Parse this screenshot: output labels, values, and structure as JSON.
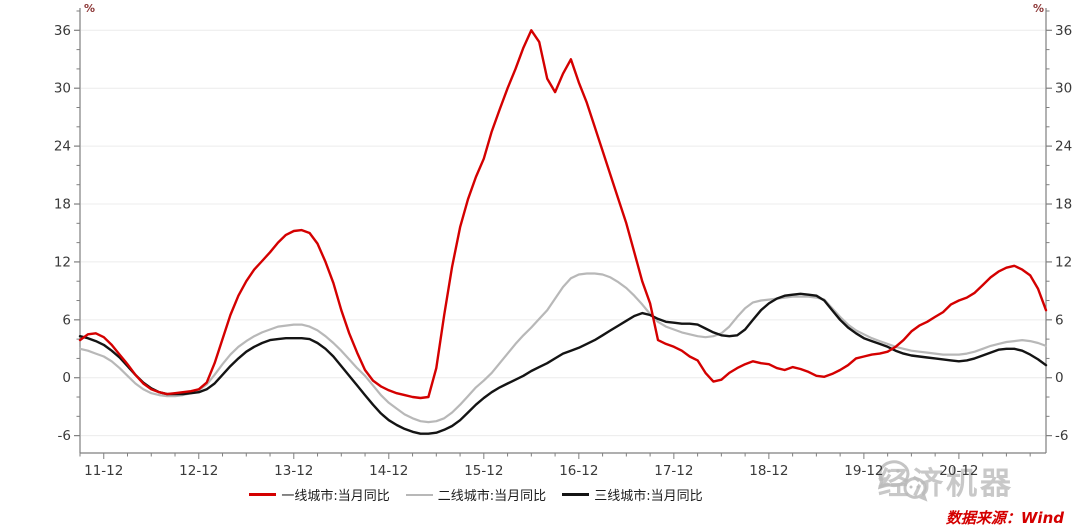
{
  "page": {
    "background": "#ffffff"
  },
  "watermark": {
    "text": "经济机器",
    "icon": "wechat-bubbles-icon",
    "color": "#c2c2c2"
  },
  "footer": {
    "source_text": "数据来源：Wind",
    "color": "#d40000"
  },
  "chart_data": {
    "type": "line",
    "title": "",
    "y_unit": "%",
    "ylim": [
      -7.8,
      38.0
    ],
    "y_ticks": [
      36,
      30,
      24,
      18,
      12,
      6,
      0,
      -6
    ],
    "y_minor_step": 2,
    "grid": "horizontal-major-light",
    "legend_position": "bottom-center",
    "x_frequency": "monthly",
    "x_points": 123,
    "x_tick_labels": [
      "11-12",
      "12-12",
      "13-12",
      "14-12",
      "15-12",
      "16-12",
      "17-12",
      "18-12",
      "19-12",
      "20-12"
    ],
    "x_first_tick_index": 3,
    "x_tick_interval": 12,
    "x_minor_interval": 3,
    "axis_color": "#7f7f7f",
    "gridline_color": "#ececec",
    "series": [
      {
        "name": "一线城市:当月同比",
        "color": "#d40000",
        "line_width": 2.4,
        "values": [
          3.9,
          4.5,
          4.6,
          4.2,
          3.4,
          2.4,
          1.4,
          0.3,
          -0.6,
          -1.2,
          -1.5,
          -1.7,
          -1.6,
          -1.5,
          -1.4,
          -1.2,
          -0.5,
          1.5,
          4.0,
          6.5,
          8.5,
          10.0,
          11.2,
          12.1,
          13.0,
          14.0,
          14.8,
          15.2,
          15.3,
          15.0,
          13.9,
          12.0,
          9.8,
          7.0,
          4.6,
          2.6,
          0.8,
          -0.3,
          -0.9,
          -1.3,
          -1.6,
          -1.8,
          -2.0,
          -2.1,
          -2.0,
          1.0,
          6.5,
          11.5,
          15.6,
          18.5,
          20.8,
          22.7,
          25.5,
          27.8,
          30.0,
          32.0,
          34.2,
          36.0,
          34.8,
          31.0,
          29.6,
          31.5,
          33.0,
          30.6,
          28.5,
          26.0,
          23.5,
          21.0,
          18.5,
          16.0,
          13.0,
          10.0,
          7.7,
          3.9,
          3.5,
          3.2,
          2.8,
          2.2,
          1.8,
          0.5,
          -0.4,
          -0.2,
          0.5,
          1.0,
          1.4,
          1.7,
          1.5,
          1.4,
          1.0,
          0.8,
          1.1,
          0.9,
          0.6,
          0.2,
          0.1,
          0.4,
          0.8,
          1.3,
          2.0,
          2.2,
          2.4,
          2.5,
          2.7,
          3.2,
          3.9,
          4.8,
          5.4,
          5.8,
          6.3,
          6.8,
          7.6,
          8.0,
          8.3,
          8.8,
          9.6,
          10.4,
          11.0,
          11.4,
          11.6,
          11.2,
          10.6,
          9.2,
          7.0
        ]
      },
      {
        "name": "二线城市:当月同比",
        "color": "#b8b8b8",
        "line_width": 2.2,
        "values": [
          3.0,
          2.8,
          2.5,
          2.2,
          1.7,
          1.0,
          0.2,
          -0.6,
          -1.2,
          -1.6,
          -1.8,
          -1.9,
          -1.9,
          -1.8,
          -1.6,
          -1.3,
          -0.7,
          0.3,
          1.4,
          2.4,
          3.2,
          3.8,
          4.3,
          4.7,
          5.0,
          5.3,
          5.4,
          5.5,
          5.5,
          5.3,
          4.9,
          4.3,
          3.6,
          2.8,
          1.9,
          1.0,
          0.2,
          -0.8,
          -1.8,
          -2.6,
          -3.2,
          -3.8,
          -4.2,
          -4.5,
          -4.6,
          -4.5,
          -4.2,
          -3.6,
          -2.8,
          -1.9,
          -1.0,
          -0.3,
          0.5,
          1.5,
          2.5,
          3.5,
          4.4,
          5.2,
          6.1,
          7.0,
          8.2,
          9.4,
          10.3,
          10.7,
          10.8,
          10.8,
          10.7,
          10.4,
          9.9,
          9.3,
          8.5,
          7.6,
          6.6,
          5.8,
          5.3,
          5.0,
          4.7,
          4.5,
          4.3,
          4.2,
          4.3,
          4.6,
          5.3,
          6.3,
          7.2,
          7.8,
          8.0,
          8.1,
          8.2,
          8.3,
          8.4,
          8.4,
          8.4,
          8.3,
          8.1,
          7.2,
          6.3,
          5.5,
          4.9,
          4.5,
          4.1,
          3.8,
          3.5,
          3.2,
          3.0,
          2.8,
          2.7,
          2.6,
          2.5,
          2.4,
          2.4,
          2.4,
          2.5,
          2.7,
          3.0,
          3.3,
          3.5,
          3.7,
          3.8,
          3.9,
          3.8,
          3.6,
          3.3
        ]
      },
      {
        "name": "三线城市:当月同比",
        "color": "#141414",
        "line_width": 2.4,
        "values": [
          4.3,
          4.1,
          3.8,
          3.4,
          2.8,
          2.1,
          1.2,
          0.3,
          -0.5,
          -1.1,
          -1.5,
          -1.7,
          -1.7,
          -1.7,
          -1.6,
          -1.5,
          -1.2,
          -0.6,
          0.3,
          1.2,
          2.0,
          2.7,
          3.2,
          3.6,
          3.9,
          4.0,
          4.1,
          4.1,
          4.1,
          4.0,
          3.6,
          3.0,
          2.2,
          1.2,
          0.2,
          -0.8,
          -1.8,
          -2.8,
          -3.7,
          -4.4,
          -4.9,
          -5.3,
          -5.6,
          -5.8,
          -5.8,
          -5.7,
          -5.4,
          -5.0,
          -4.4,
          -3.6,
          -2.8,
          -2.1,
          -1.5,
          -1.0,
          -0.6,
          -0.2,
          0.2,
          0.7,
          1.1,
          1.5,
          2.0,
          2.5,
          2.8,
          3.1,
          3.5,
          3.9,
          4.4,
          4.9,
          5.4,
          5.9,
          6.4,
          6.7,
          6.5,
          6.1,
          5.8,
          5.7,
          5.6,
          5.6,
          5.5,
          5.1,
          4.7,
          4.4,
          4.3,
          4.4,
          5.0,
          6.0,
          7.0,
          7.7,
          8.2,
          8.5,
          8.6,
          8.7,
          8.6,
          8.5,
          8.0,
          7.0,
          6.0,
          5.2,
          4.6,
          4.1,
          3.8,
          3.5,
          3.2,
          2.8,
          2.5,
          2.3,
          2.2,
          2.1,
          2.0,
          1.9,
          1.8,
          1.7,
          1.8,
          2.0,
          2.3,
          2.6,
          2.9,
          3.0,
          3.0,
          2.8,
          2.4,
          1.9,
          1.3
        ]
      }
    ]
  }
}
